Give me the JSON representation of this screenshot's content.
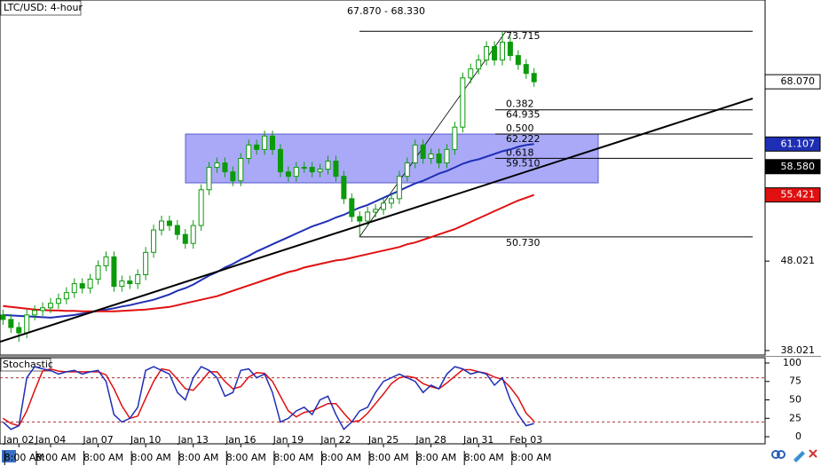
{
  "chart_data": {
    "type": "candlestick",
    "title": "LTC/USD: 4-hour",
    "subtitle": "67.870 - 68.330",
    "categories": [
      null,
      null,
      "Jan 02",
      null,
      null,
      null,
      "Jan 04",
      null,
      null,
      null,
      null,
      null,
      "Jan 07",
      null,
      null,
      null,
      null,
      null,
      "Jan 10",
      null,
      null,
      null,
      null,
      null,
      "Jan 13",
      null,
      null,
      null,
      null,
      null,
      "Jan 16",
      null,
      null,
      null,
      null,
      null,
      "Jan 19",
      null,
      null,
      null,
      null,
      null,
      "Jan 22",
      null,
      null,
      null,
      null,
      null,
      "Jan 25",
      null,
      null,
      null,
      null,
      null,
      "Jan 28",
      null,
      null,
      null,
      null,
      null,
      "Jan 31",
      null,
      null,
      null,
      null,
      null,
      "Feb 03",
      null
    ],
    "time_labels": [
      null,
      null,
      "8:00 AM",
      null,
      null,
      null,
      "8:00 AM",
      null,
      null,
      null,
      null,
      null,
      "8:00 AM",
      null,
      null,
      null,
      null,
      null,
      "8:00 AM",
      null,
      null,
      null,
      null,
      null,
      "8:00 AM",
      null,
      null,
      null,
      null,
      null,
      "8:00 AM",
      null,
      null,
      null,
      null,
      null,
      "8:00 AM",
      null,
      null,
      null,
      null,
      null,
      "8:00 AM",
      null,
      null,
      null,
      null,
      null,
      "8:00 AM",
      null,
      null,
      null,
      null,
      null,
      "8:00 AM",
      null,
      null,
      null,
      null,
      null,
      "8:00 AM",
      null,
      null,
      null,
      null,
      null,
      "8:00 AM",
      null
    ],
    "open": [
      42.0,
      41.5,
      40.6,
      40.0,
      42.0,
      42.5,
      42.8,
      43.3,
      43.8,
      44.5,
      45.5,
      45.0,
      46.0,
      47.5,
      48.5,
      45.2,
      45.8,
      45.5,
      46.5,
      49.0,
      51.5,
      52.5,
      52.0,
      51.0,
      50.0,
      52.0,
      56.0,
      58.5,
      59.0,
      58.0,
      57.0,
      59.5,
      61.0,
      60.5,
      62.0,
      60.5,
      58.0,
      57.5,
      58.5,
      58.5,
      58.0,
      58.3,
      59.2,
      57.5,
      55.0,
      53.0,
      52.5,
      53.5,
      53.8,
      54.5,
      55.0,
      57.5,
      59.0,
      61.0,
      59.5,
      60.0,
      59.0,
      60.5,
      63.0,
      68.5,
      69.5,
      70.5,
      72.0,
      70.5,
      72.5,
      71.0,
      70.0,
      69.0
    ],
    "high": [
      42.6,
      42.1,
      41.2,
      42.6,
      43.1,
      43.4,
      43.9,
      44.4,
      45.1,
      46.1,
      46.1,
      46.6,
      48.1,
      49.1,
      49.1,
      46.4,
      46.4,
      47.1,
      49.6,
      52.1,
      53.1,
      53.1,
      52.6,
      51.6,
      52.6,
      56.6,
      59.1,
      59.6,
      59.6,
      58.6,
      60.1,
      61.6,
      61.6,
      62.6,
      62.6,
      61.1,
      58.6,
      59.1,
      59.1,
      59.1,
      58.9,
      59.8,
      59.8,
      58.1,
      55.6,
      53.6,
      54.1,
      54.4,
      55.1,
      55.6,
      58.1,
      59.6,
      61.6,
      61.6,
      60.6,
      60.6,
      61.1,
      63.6,
      69.1,
      70.1,
      71.1,
      72.6,
      72.6,
      73.715,
      73.1,
      71.6,
      70.6,
      69.6
    ],
    "low": [
      40.9,
      40.0,
      39.0,
      39.4,
      41.4,
      41.9,
      42.2,
      42.7,
      43.2,
      43.9,
      44.4,
      44.4,
      45.4,
      46.9,
      44.6,
      44.6,
      44.9,
      44.9,
      45.9,
      48.4,
      50.9,
      51.4,
      50.4,
      49.4,
      49.4,
      51.4,
      55.4,
      57.9,
      57.4,
      56.4,
      56.4,
      58.9,
      59.9,
      59.9,
      59.9,
      57.4,
      56.9,
      56.9,
      57.9,
      57.4,
      57.4,
      57.7,
      56.9,
      54.4,
      52.4,
      50.73,
      51.9,
      52.9,
      53.2,
      53.9,
      54.4,
      56.9,
      58.4,
      58.9,
      58.9,
      58.4,
      58.4,
      59.9,
      62.4,
      67.9,
      68.9,
      69.9,
      69.9,
      69.9,
      70.4,
      69.4,
      68.4,
      67.5
    ],
    "close": [
      41.5,
      40.6,
      40.0,
      42.0,
      42.5,
      42.8,
      43.3,
      43.8,
      44.5,
      45.5,
      45.0,
      46.0,
      47.5,
      48.5,
      45.2,
      45.8,
      45.5,
      46.5,
      49.0,
      51.5,
      52.5,
      52.0,
      51.0,
      50.0,
      52.0,
      56.0,
      58.5,
      59.0,
      58.0,
      57.0,
      59.5,
      61.0,
      60.5,
      62.0,
      60.5,
      58.0,
      57.5,
      58.5,
      58.5,
      58.0,
      58.3,
      59.2,
      57.5,
      55.0,
      53.0,
      52.5,
      53.5,
      53.8,
      54.5,
      55.0,
      57.5,
      59.0,
      61.0,
      59.5,
      60.0,
      59.0,
      60.5,
      63.0,
      68.5,
      69.5,
      70.5,
      72.0,
      70.5,
      72.5,
      71.0,
      70.0,
      69.0,
      68.07
    ],
    "candle_color": "#0a9a0a",
    "moving_averages": [
      {
        "color": "#1f2fb5",
        "values": [
          42.0,
          41.95,
          41.9,
          41.85,
          41.8,
          41.75,
          41.7,
          41.8,
          41.9,
          42.0,
          42.15,
          42.3,
          42.45,
          42.6,
          42.75,
          42.95,
          43.1,
          43.3,
          43.5,
          43.7,
          44.0,
          44.3,
          44.7,
          45.0,
          45.4,
          45.9,
          46.4,
          46.8,
          47.3,
          47.7,
          48.2,
          48.6,
          49.1,
          49.5,
          49.9,
          50.3,
          50.7,
          51.1,
          51.5,
          51.9,
          52.2,
          52.5,
          52.9,
          53.2,
          53.6,
          54.0,
          54.3,
          54.7,
          55.1,
          55.5,
          55.9,
          56.3,
          56.7,
          57.0,
          57.4,
          57.8,
          58.1,
          58.5,
          58.9,
          59.2,
          59.4,
          59.7,
          60.0,
          60.3,
          60.5,
          60.8,
          61.0,
          61.107
        ]
      },
      {
        "color": "#e01010",
        "values": [
          43.0,
          42.9,
          42.8,
          42.7,
          42.6,
          42.55,
          42.5,
          42.5,
          42.45,
          42.45,
          42.4,
          42.4,
          42.4,
          42.4,
          42.4,
          42.45,
          42.5,
          42.55,
          42.6,
          42.7,
          42.8,
          42.9,
          43.1,
          43.3,
          43.5,
          43.7,
          43.9,
          44.1,
          44.4,
          44.7,
          45.0,
          45.3,
          45.6,
          45.9,
          46.2,
          46.5,
          46.8,
          47.0,
          47.3,
          47.5,
          47.7,
          47.9,
          48.1,
          48.2,
          48.4,
          48.6,
          48.8,
          49.0,
          49.2,
          49.4,
          49.6,
          49.9,
          50.1,
          50.4,
          50.7,
          51.0,
          51.3,
          51.6,
          52.0,
          52.4,
          52.8,
          53.2,
          53.6,
          54.0,
          54.4,
          54.8,
          55.1,
          55.421
        ]
      }
    ],
    "ylim": [
      37.52,
      77.21
    ],
    "yticks": [
      {
        "value": 38.021,
        "label": "38.021"
      },
      {
        "value": 48.021,
        "label": "48.021"
      }
    ],
    "price_tags": [
      {
        "value": 68.07,
        "label": "68.070",
        "color": "#ffffff",
        "text_color": "#000000"
      },
      {
        "value": 61.107,
        "label": "61.107",
        "color": "#1f2fb5",
        "text_color": "#ffffff"
      },
      {
        "value": 58.58,
        "label": "58.580",
        "color": "#000000",
        "text_color": "#ffffff"
      },
      {
        "value": 55.421,
        "label": "55.421",
        "color": "#e01010",
        "text_color": "#ffffff"
      }
    ],
    "fib_high": 73.715,
    "fib_low": {
      "value": 50.73,
      "label": "50.730"
    },
    "fib_levels": [
      {
        "ratio": 0.382,
        "price": 64.935
      },
      {
        "ratio": {
          "value": 0.5,
          "label": "0.500"
        },
        "price": 62.222
      },
      {
        "ratio": 0.618,
        "price": {
          "value": 59.51,
          "label": "59.510"
        }
      }
    ],
    "zone": [
      56.77,
      62.222
    ],
    "zone_color": "#8c8cf5",
    "trendline": [
      39.0,
      66.2
    ],
    "stochastic": {
      "title": "Stochastic",
      "k": [
        20,
        10,
        15,
        80,
        95,
        92,
        90,
        85,
        88,
        90,
        85,
        88,
        90,
        75,
        30,
        20,
        25,
        40,
        90,
        95,
        90,
        85,
        60,
        50,
        80,
        95,
        90,
        80,
        55,
        60,
        90,
        92,
        80,
        85,
        60,
        20,
        25,
        35,
        40,
        30,
        50,
        55,
        30,
        10,
        20,
        35,
        40,
        60,
        75,
        80,
        85,
        80,
        75,
        60,
        70,
        65,
        85,
        95,
        92,
        85,
        88,
        85,
        70,
        80,
        50,
        30,
        15,
        18
      ],
      "d": [
        25,
        18,
        15,
        35,
        63,
        89,
        92,
        89,
        88,
        88,
        88,
        88,
        88,
        84,
        65,
        42,
        25,
        28,
        52,
        75,
        92,
        90,
        78,
        65,
        63,
        75,
        88,
        88,
        75,
        65,
        68,
        81,
        87,
        86,
        75,
        55,
        35,
        27,
        33,
        35,
        40,
        45,
        45,
        32,
        20,
        22,
        32,
        45,
        58,
        72,
        80,
        82,
        80,
        72,
        68,
        65,
        73,
        82,
        91,
        91,
        88,
        86,
        81,
        78,
        67,
        53,
        32,
        21
      ],
      "k_color": "#1f2fb5",
      "d_color": "#e01010",
      "levels": [
        80,
        20
      ],
      "ylim": [
        -9.6,
        107.2
      ],
      "yticks": [
        0,
        25,
        50,
        75,
        100
      ]
    }
  }
}
